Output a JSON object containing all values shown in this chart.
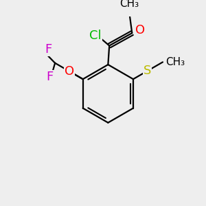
{
  "background_color": "#eeeeee",
  "bond_color": "#000000",
  "atom_colors": {
    "Cl": "#00bb00",
    "O": "#ff0000",
    "F": "#cc00cc",
    "S": "#bbbb00",
    "C": "#000000"
  },
  "font_size": 13,
  "font_size_small": 11
}
